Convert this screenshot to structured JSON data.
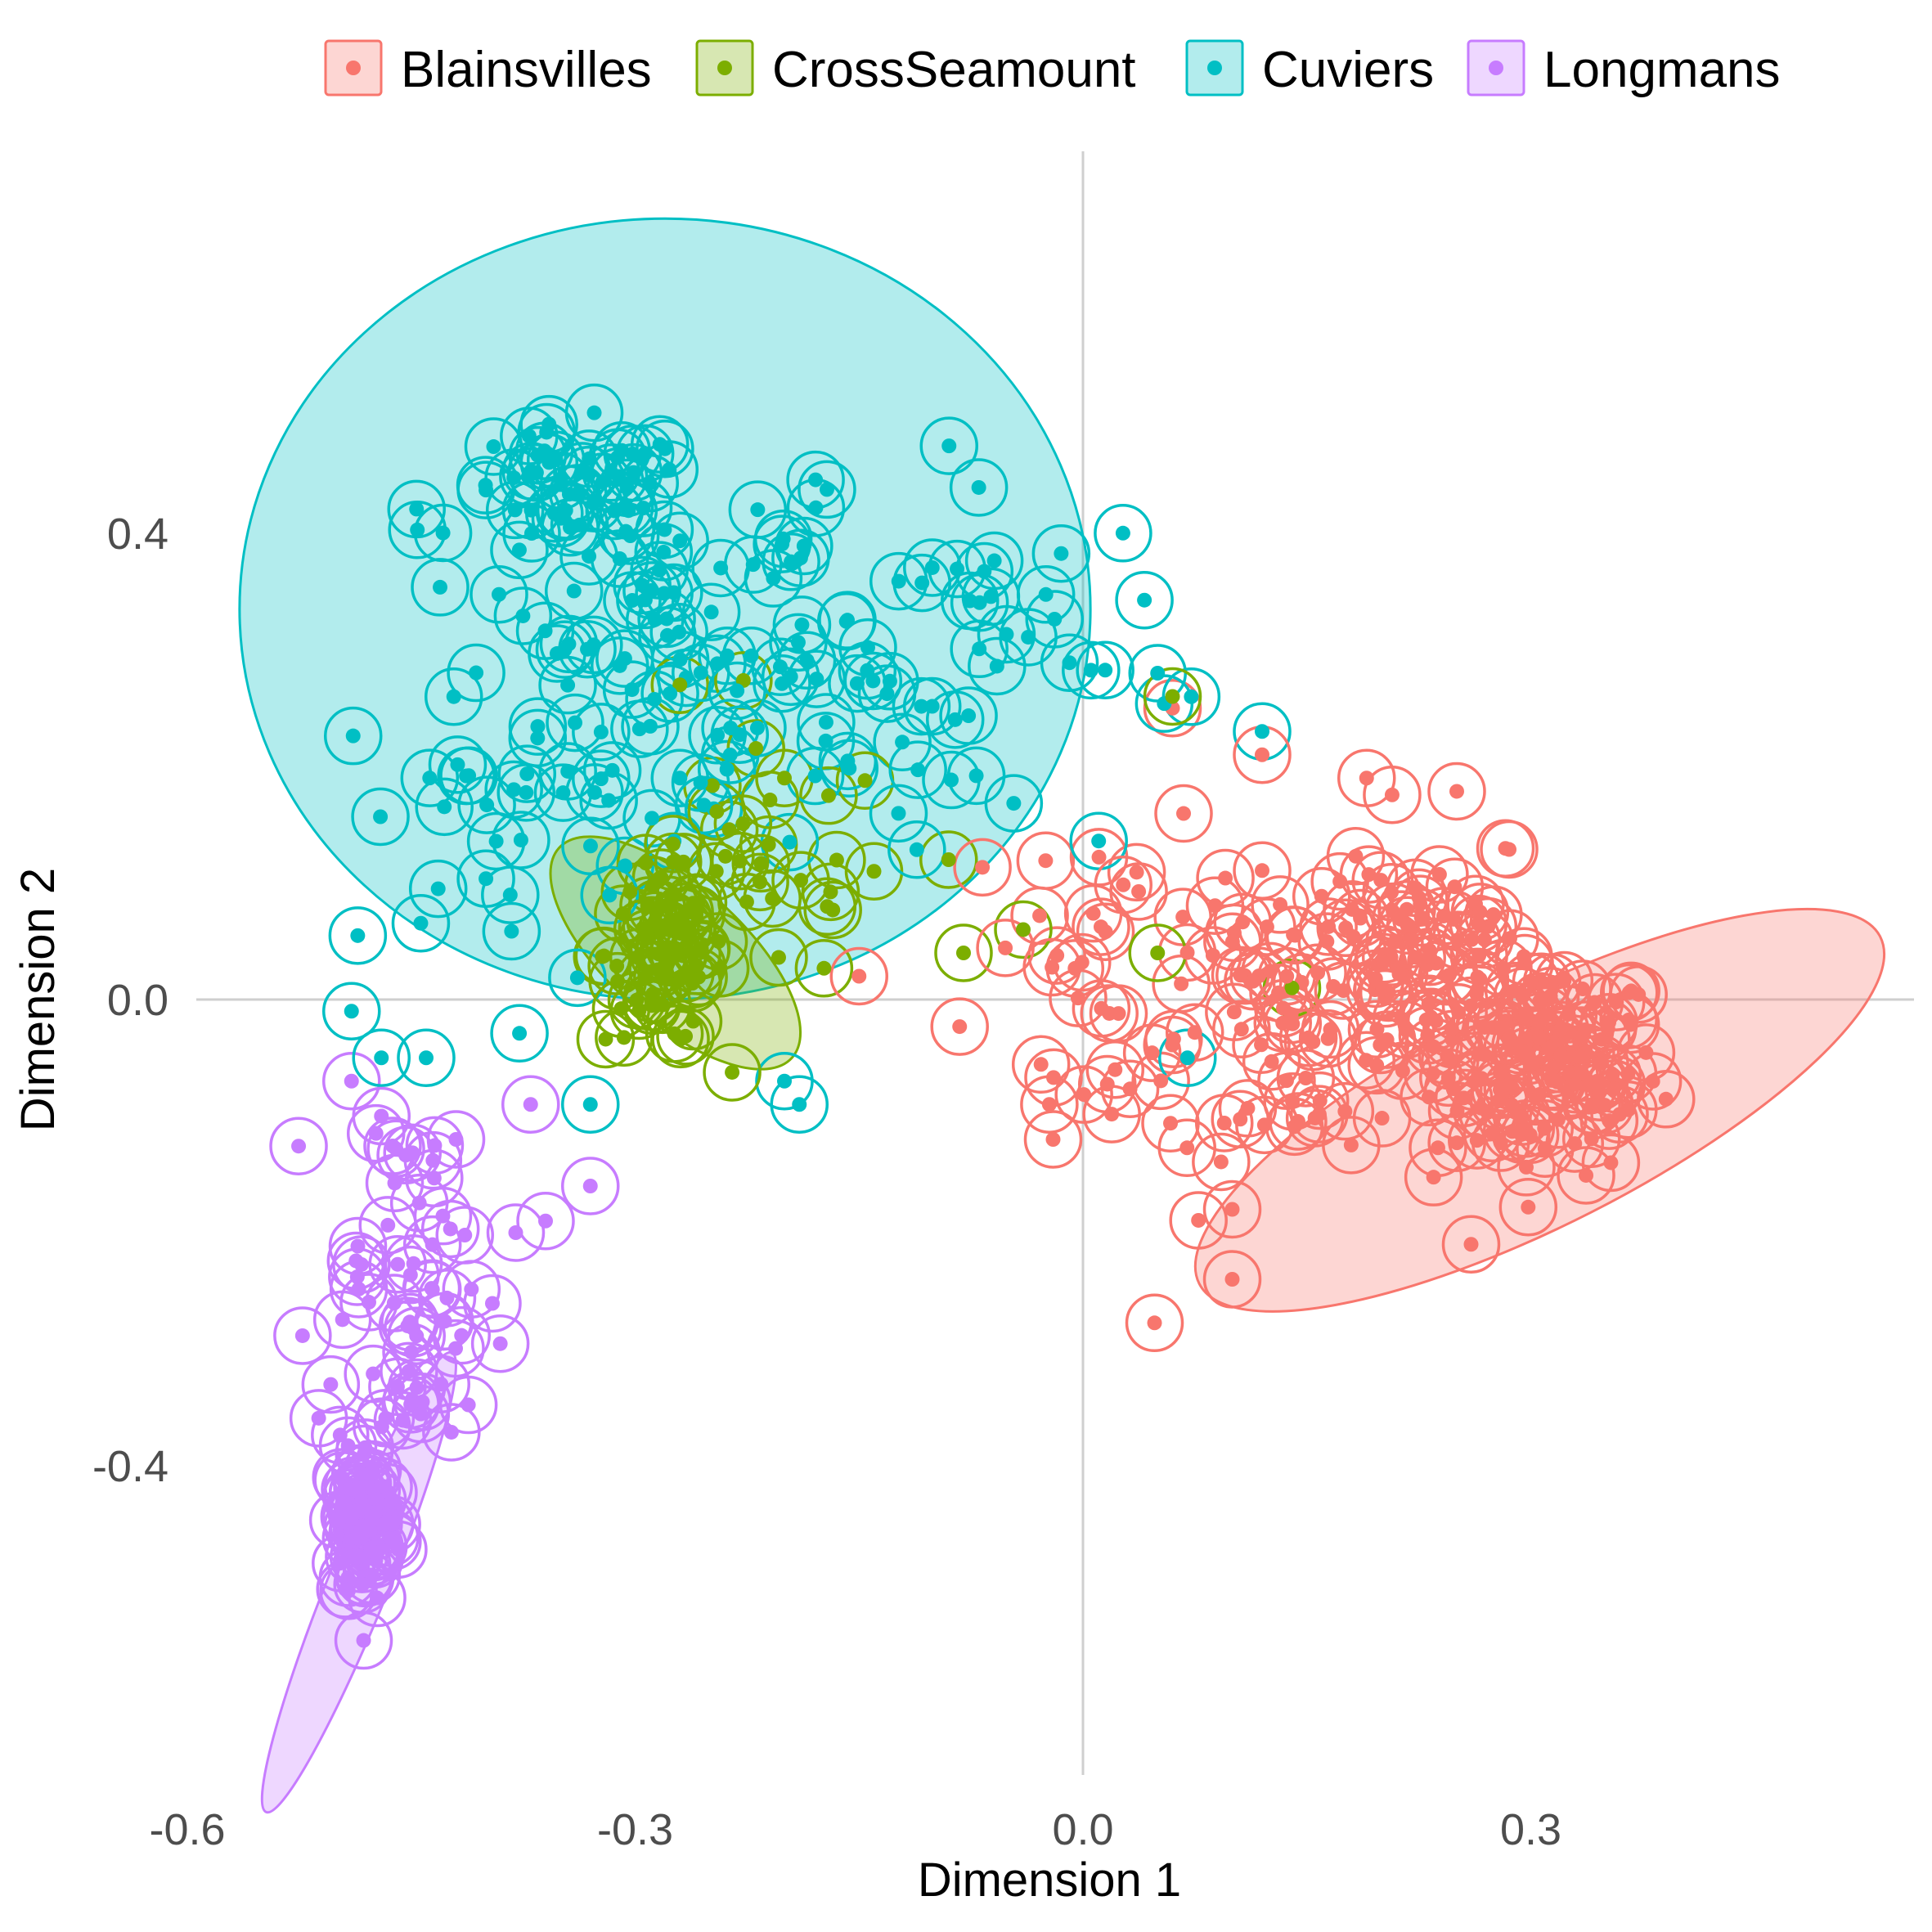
{
  "chart_data": {
    "type": "scatter",
    "xlabel": "Dimension 1",
    "ylabel": "Dimension 2",
    "xlim": [
      -0.72,
      0.72
    ],
    "ylim": [
      -0.68,
      0.71
    ],
    "x_ticks": [
      "-0.6",
      "-0.3",
      "0.0",
      "0.3"
    ],
    "x_tick_values": [
      -0.6,
      -0.3,
      0.0,
      0.3
    ],
    "y_ticks": [
      "0.4",
      "0.0",
      "-0.4"
    ],
    "y_tick_values": [
      0.4,
      0.0,
      -0.4
    ],
    "zero_lines": true,
    "grid": false,
    "legend_position": "top",
    "series": [
      {
        "name": "Blainsvilles",
        "color": "#F8766D",
        "ellipse": {
          "cx": 0.306,
          "cy": -0.095,
          "rx": 0.256,
          "ry": 0.098,
          "angle_deg": -27
        },
        "clusters": [
          {
            "cx": 0.31,
            "cy": -0.06,
            "sx": 0.038,
            "sy": 0.045,
            "n": 120
          },
          {
            "cx": 0.21,
            "cy": 0.04,
            "sx": 0.05,
            "sy": 0.06,
            "n": 90
          },
          {
            "cx": 0.12,
            "cy": -0.04,
            "sx": 0.07,
            "sy": 0.07,
            "n": 60
          },
          {
            "cx": 0.02,
            "cy": 0.05,
            "sx": 0.05,
            "sy": 0.05,
            "n": 25
          }
        ],
        "points": [
          [
            0.1,
            -0.24
          ],
          [
            -0.02,
            -0.12
          ],
          [
            0.26,
            -0.21
          ],
          [
            0.1,
            -0.18
          ],
          [
            0.06,
            0.25
          ],
          [
            0.12,
            0.21
          ],
          [
            0.19,
            0.19
          ],
          [
            -0.15,
            0.02
          ]
        ]
      },
      {
        "name": "CrossSeamount",
        "color": "#7CAE00",
        "ellipse": {
          "cx": -0.273,
          "cy": 0.04,
          "rx": 0.105,
          "ry": 0.058,
          "angle_deg": 42
        },
        "clusters": [
          {
            "cx": -0.28,
            "cy": 0.04,
            "sx": 0.02,
            "sy": 0.04,
            "n": 70
          },
          {
            "cx": -0.21,
            "cy": 0.11,
            "sx": 0.04,
            "sy": 0.05,
            "n": 25
          }
        ],
        "points": [
          [
            -0.27,
            0.27
          ],
          [
            -0.2,
            0.19
          ],
          [
            -0.08,
            0.04
          ],
          [
            -0.04,
            0.06
          ],
          [
            0.05,
            0.04
          ],
          [
            -0.09,
            0.12
          ],
          [
            -0.14,
            0.11
          ],
          [
            0.06,
            0.26
          ],
          [
            0.14,
            0.01
          ]
        ]
      },
      {
        "name": "Cuviers",
        "color": "#00BFC4",
        "ellipse": {
          "cx": -0.28,
          "cy": 0.335,
          "rx": 0.285,
          "ry": 0.335,
          "angle_deg": 0
        },
        "clusters": [
          {
            "cx": -0.34,
            "cy": 0.43,
            "sx": 0.04,
            "sy": 0.03,
            "n": 55
          },
          {
            "cx": -0.19,
            "cy": 0.36,
            "sx": 0.09,
            "sy": 0.06,
            "n": 45
          },
          {
            "cx": -0.31,
            "cy": 0.26,
            "sx": 0.05,
            "sy": 0.06,
            "n": 35
          },
          {
            "cx": -0.18,
            "cy": 0.22,
            "sx": 0.08,
            "sy": 0.05,
            "n": 35
          },
          {
            "cx": -0.42,
            "cy": 0.15,
            "sx": 0.07,
            "sy": 0.08,
            "n": 25
          },
          {
            "cx": -0.04,
            "cy": 0.3,
            "sx": 0.05,
            "sy": 0.05,
            "n": 18
          }
        ],
        "points": [
          [
            -0.49,
            -0.01
          ],
          [
            -0.47,
            -0.05
          ],
          [
            -0.44,
            -0.05
          ],
          [
            -0.33,
            -0.09
          ],
          [
            -0.2,
            -0.07
          ],
          [
            -0.19,
            -0.09
          ],
          [
            0.07,
            -0.05
          ],
          [
            0.12,
            0.23
          ],
          [
            0.05,
            0.28
          ],
          [
            -0.27,
            0.19
          ]
        ]
      },
      {
        "name": "Longmans",
        "color": "#C77CFF",
        "ellipse": {
          "cx": -0.485,
          "cy": -0.5,
          "rx": 0.166,
          "ry": 0.026,
          "angle_deg": -68
        },
        "clusters": [
          {
            "cx": -0.48,
            "cy": -0.45,
            "sx": 0.01,
            "sy": 0.035,
            "n": 80
          },
          {
            "cx": -0.45,
            "cy": -0.3,
            "sx": 0.025,
            "sy": 0.05,
            "n": 35
          },
          {
            "cx": -0.46,
            "cy": -0.18,
            "sx": 0.025,
            "sy": 0.05,
            "n": 25
          }
        ],
        "points": [
          [
            -0.37,
            -0.09
          ],
          [
            -0.33,
            -0.16
          ],
          [
            -0.36,
            -0.19
          ],
          [
            -0.38,
            -0.2
          ],
          [
            -0.42,
            -0.12
          ],
          [
            -0.43,
            -0.33
          ],
          [
            -0.47,
            -0.1
          ],
          [
            -0.49,
            -0.07
          ]
        ]
      }
    ]
  }
}
